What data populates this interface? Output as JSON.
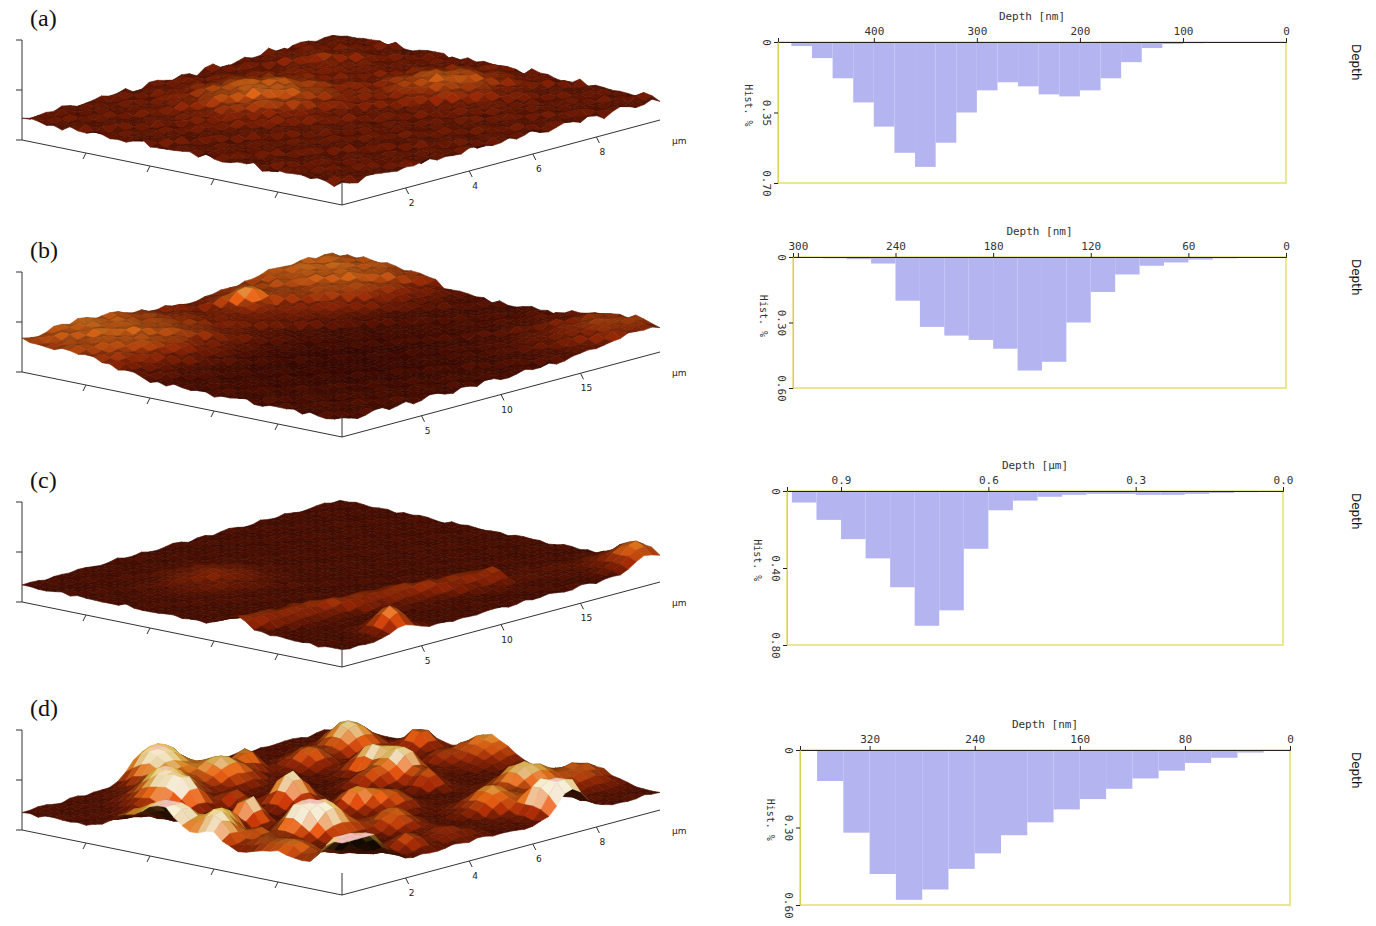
{
  "chart_data": [
    {
      "type": "surface",
      "panel": "(a)",
      "xlabel": "μm",
      "xlim": [
        0,
        10
      ],
      "xticks": [
        2,
        4,
        6,
        8
      ]
    },
    {
      "type": "histogram",
      "title": "Depth",
      "xlabel": "Depth [nm]",
      "ylabel": "Hist. %",
      "color": "#b4b4f0",
      "bins": [
        0,
        20,
        40,
        60,
        80,
        100,
        120,
        140,
        160,
        180,
        200,
        220,
        240,
        260,
        280,
        300,
        320,
        340,
        360,
        380,
        400,
        420,
        440,
        460,
        480
      ],
      "values": [
        0.003,
        0.003,
        0.004,
        0.005,
        0.006,
        0.01,
        0.03,
        0.1,
        0.18,
        0.24,
        0.27,
        0.26,
        0.22,
        0.2,
        0.24,
        0.35,
        0.5,
        0.62,
        0.55,
        0.42,
        0.3,
        0.18,
        0.08,
        0.02
      ],
      "xlim": [
        493,
        0
      ],
      "xticks": [
        400,
        300,
        200,
        100,
        0
      ],
      "ylim": [
        0,
        0.7
      ],
      "yticks": [
        0,
        {
          "value": 0.35,
          "label": "0.35"
        },
        {
          "value": 0.7,
          "label": "0.70"
        }
      ]
    },
    {
      "type": "surface",
      "panel": "(b)",
      "xlabel": "μm",
      "xlim": [
        0,
        20
      ],
      "xticks": [
        5,
        10,
        15
      ]
    },
    {
      "type": "histogram",
      "title": "Depth",
      "xlabel": "Depth [nm]",
      "ylabel": "Hist. %",
      "color": "#b4b4f0",
      "bins": [
        0,
        15,
        30,
        45,
        60,
        75,
        90,
        105,
        120,
        135,
        150,
        165,
        180,
        195,
        210,
        225,
        240,
        255,
        270,
        285,
        300
      ],
      "values": [
        0.003,
        0.004,
        0.006,
        0.012,
        0.025,
        0.04,
        0.08,
        0.16,
        0.3,
        0.48,
        0.52,
        0.42,
        0.38,
        0.36,
        0.32,
        0.2,
        0.03,
        0.01,
        0.006,
        0.004
      ],
      "xlim": [
        303,
        0
      ],
      "xticks": [
        300,
        240,
        180,
        120,
        60,
        0
      ],
      "ylim": [
        0,
        0.6
      ],
      "yticks": [
        0,
        {
          "value": 0.3,
          "label": "0.30"
        },
        {
          "value": 0.6,
          "label": "0.60"
        }
      ]
    },
    {
      "type": "surface",
      "panel": "(c)",
      "xlabel": "μm",
      "xlim": [
        0,
        20
      ],
      "xticks": [
        5,
        10,
        15
      ]
    },
    {
      "type": "histogram",
      "title": "Depth",
      "xlabel": "Depth [μm]",
      "ylabel": "Hist. %",
      "color": "#b4b4f0",
      "bins": [
        0,
        0.05,
        0.1,
        0.15,
        0.2,
        0.25,
        0.3,
        0.35,
        0.4,
        0.45,
        0.5,
        0.55,
        0.6,
        0.65,
        0.7,
        0.75,
        0.8,
        0.85,
        0.9,
        0.95,
        1.0
      ],
      "values": [
        0.004,
        0.006,
        0.01,
        0.015,
        0.02,
        0.02,
        0.015,
        0.015,
        0.02,
        0.03,
        0.05,
        0.1,
        0.3,
        0.62,
        0.7,
        0.5,
        0.35,
        0.25,
        0.15,
        0.06
      ],
      "xlim": [
        1.01,
        0
      ],
      "xticks": [
        0.9,
        0.6,
        0.3,
        {
          "value": 0,
          "label": "0.0"
        }
      ],
      "ylim": [
        0,
        0.8
      ],
      "yticks": [
        0,
        {
          "value": 0.4,
          "label": "0.40"
        },
        {
          "value": 0.8,
          "label": "0.80"
        }
      ]
    },
    {
      "type": "surface",
      "panel": "(d)",
      "xlabel": "μm",
      "xlim": [
        0,
        10
      ],
      "xticks": [
        2,
        4,
        6,
        8
      ]
    },
    {
      "type": "histogram",
      "title": "Depth",
      "xlabel": "Depth [nm]",
      "ylabel": "Hist. %",
      "color": "#b4b4f0",
      "bins": [
        0,
        20,
        40,
        60,
        80,
        100,
        120,
        140,
        160,
        180,
        200,
        220,
        240,
        260,
        280,
        300,
        320,
        340,
        360
      ],
      "values": [
        0.004,
        0.01,
        0.03,
        0.05,
        0.08,
        0.11,
        0.15,
        0.19,
        0.23,
        0.28,
        0.33,
        0.4,
        0.46,
        0.54,
        0.58,
        0.48,
        0.32,
        0.12
      ],
      "xlim": [
        373,
        0
      ],
      "xticks": [
        320,
        240,
        160,
        80,
        0
      ],
      "ylim": [
        0,
        0.6
      ],
      "yticks": [
        0,
        {
          "value": 0.3,
          "label": "0.30"
        },
        {
          "value": 0.6,
          "label": "0.60"
        }
      ]
    }
  ]
}
